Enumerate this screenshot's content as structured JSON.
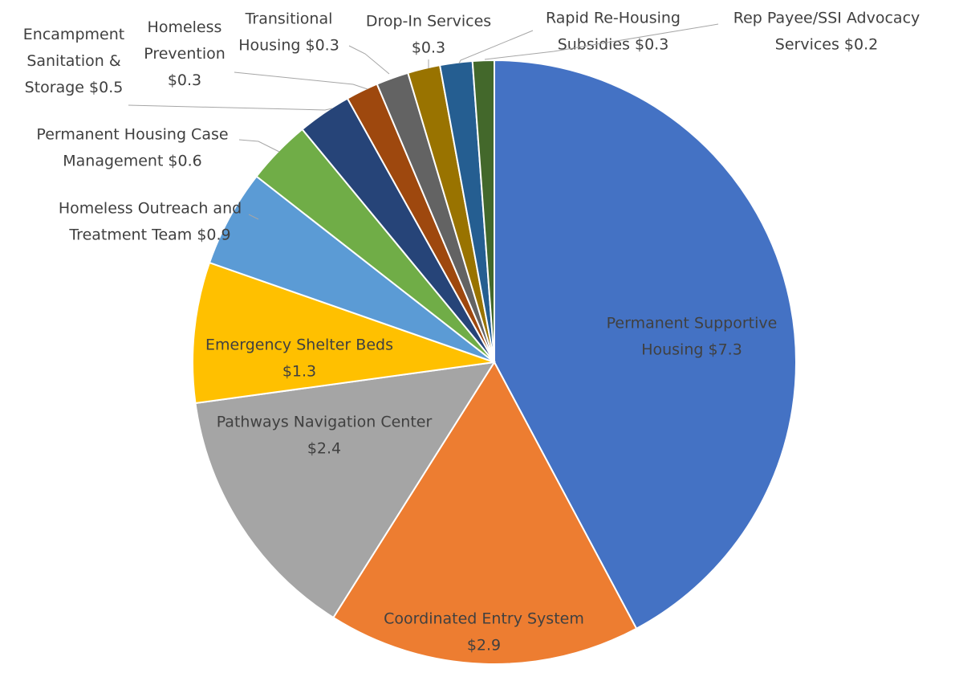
{
  "chart_data": {
    "type": "pie",
    "title": "",
    "unit": "$M",
    "start_angle_deg": 0,
    "direction": "clockwise",
    "slices": [
      {
        "label": "Permanent Supportive Housing",
        "label_text": "Permanent Supportive\nHousing $7.3",
        "value": 7.3,
        "color": "#4472C4",
        "label_placement": "inside"
      },
      {
        "label": "Coordinated Entry System",
        "label_text": "Coordinated Entry System\n$2.9",
        "value": 2.9,
        "color": "#ED7D31",
        "label_placement": "inside"
      },
      {
        "label": "Pathways Navigation Center",
        "label_text": "Pathways Navigation Center\n$2.4",
        "value": 2.4,
        "color": "#A5A5A5",
        "label_placement": "inside"
      },
      {
        "label": "Emergency Shelter Beds",
        "label_text": "Emergency Shelter Beds\n$1.3",
        "value": 1.3,
        "color": "#FFC000",
        "label_placement": "inside"
      },
      {
        "label": "Homeless Outreach and Treatment Team",
        "label_text": "Homeless Outreach and\nTreatment Team $0.9",
        "value": 0.9,
        "color": "#5B9BD5",
        "label_placement": "outside"
      },
      {
        "label": "Permanent Housing Case Management",
        "label_text": "Permanent Housing Case\nManagement $0.6",
        "value": 0.6,
        "color": "#70AD47",
        "label_placement": "outside"
      },
      {
        "label": "Encampment Sanitation & Storage",
        "label_text": "Encampment\nSanitation &\nStorage $0.5",
        "value": 0.5,
        "color": "#264478",
        "label_placement": "outside"
      },
      {
        "label": "Homeless Prevention",
        "label_text": "Homeless\nPrevention\n$0.3",
        "value": 0.3,
        "color": "#9E480E",
        "label_placement": "outside"
      },
      {
        "label": "Transitional Housing",
        "label_text": "Transitional\nHousing $0.3",
        "value": 0.3,
        "color": "#636363",
        "label_placement": "outside"
      },
      {
        "label": "Drop-In Services",
        "label_text": "Drop-In Services\n$0.3",
        "value": 0.3,
        "color": "#997300",
        "label_placement": "outside"
      },
      {
        "label": "Rapid Re-Housing Subsidies",
        "label_text": "Rapid Re-Housing\nSubsidies $0.3",
        "value": 0.3,
        "color": "#255E91",
        "label_placement": "outside"
      },
      {
        "label": "Rep Payee/SSI Advocacy Services",
        "label_text": "Rep Payee/SSI Advocacy\nServices $0.2",
        "value": 0.2,
        "color": "#43682B",
        "label_placement": "outside"
      }
    ]
  }
}
